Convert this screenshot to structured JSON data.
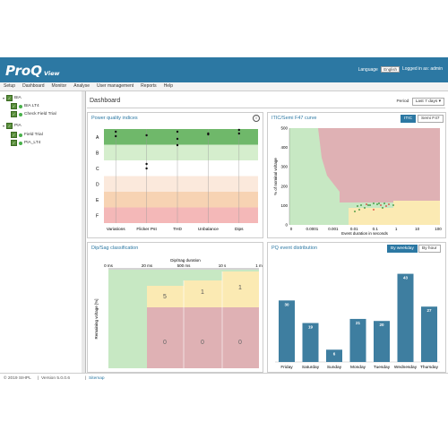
{
  "brand": {
    "name": "ProQ",
    "sub": "View"
  },
  "header": {
    "language_label": "Language",
    "language_value": "English",
    "login_text": "Logged in as: admin"
  },
  "menu": [
    "Setup",
    "Dashboard",
    "Monitor",
    "Analyse",
    "User management",
    "Reports",
    "Help"
  ],
  "tree": [
    {
      "label": "BIA",
      "level": 0
    },
    {
      "label": "BIA LT4",
      "level": 1
    },
    {
      "label": "Check Field Trial",
      "level": 1
    },
    {
      "label": "PIA",
      "level": 0
    },
    {
      "label": "Field Trial",
      "level": 1
    },
    {
      "label": "PIA_LT4",
      "level": 1
    }
  ],
  "dashboard": {
    "title": "Dashboard",
    "period_label": "Period",
    "period_value": "Last 7 days"
  },
  "pq_indices": {
    "title": "Power quality indices",
    "classes": [
      "A",
      "B",
      "C",
      "D",
      "E",
      "F"
    ],
    "categories": [
      "Variations",
      "Flicker Pst",
      "THD",
      "Unbalance",
      "Dips"
    ],
    "colors": [
      "#6fb86a",
      "#d5eecd",
      "#ffffff",
      "#fbe9dc",
      "#f7d3b3",
      "#f4b8b8"
    ],
    "info_icon": "info-icon"
  },
  "itic": {
    "title": "ITIC/Semi F47 curve",
    "tabs": [
      "ITIC",
      "Semi F47"
    ],
    "active_tab": "ITIC",
    "ylabel": "% of nominal voltage",
    "xlabel": "Event duration in seconds",
    "yticks": [
      "500",
      "400",
      "300",
      "200",
      "100",
      "0"
    ],
    "xticks": [
      "0",
      "0.0001",
      "0.001",
      "0.01",
      "0.1",
      "1",
      "10",
      "100"
    ]
  },
  "dipsag": {
    "title": "Dip/Sag classification",
    "top_axis_label": "Dip/Sag duration",
    "top_ticks": [
      "0 ms",
      "20 ms",
      "500 ms",
      "10 s",
      "1 m"
    ],
    "ylabel": "Remaining voltage [%]",
    "cells_top": [
      "5",
      "1",
      "1"
    ],
    "cells_bottom": [
      "0",
      "0",
      "0"
    ]
  },
  "pq_events": {
    "title": "PQ event distribution",
    "tabs": [
      "By weekday",
      "By hour"
    ],
    "active_tab": "By weekday",
    "bar_color": "#3e7ea0"
  },
  "chart_data": {
    "type": "bar",
    "categories": [
      "Friday",
      "Saturday",
      "Sunday",
      "Monday",
      "Tuesday",
      "Wednesday",
      "Thursday"
    ],
    "values": [
      30,
      19,
      6,
      21,
      20,
      43,
      27
    ],
    "title": "PQ event distribution",
    "ylim": [
      0,
      45
    ]
  },
  "footer": {
    "copyright": "© 2019 SIHPL",
    "version": "Version 5.0.0.6",
    "sitemap": "Sitemap"
  }
}
